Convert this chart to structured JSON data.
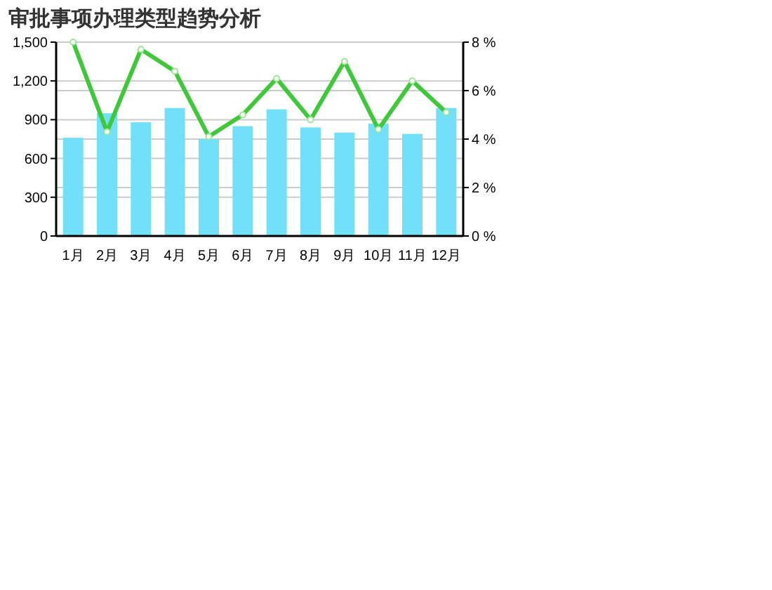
{
  "chart_data": {
    "type": "bar",
    "title": "审批事项办理类型趋势分析",
    "categories": [
      "1月",
      "2月",
      "3月",
      "4月",
      "5月",
      "6月",
      "7月",
      "8月",
      "9月",
      "10月",
      "11月",
      "12月"
    ],
    "series": [
      {
        "color": "#72e0f9",
        "values": [
          760,
          950,
          880,
          990,
          750,
          850,
          980,
          840,
          800,
          870,
          790,
          990
        ]
      },
      {
        "type": "line",
        "axis": "y2",
        "color": "#3ec83a",
        "marker": "circle",
        "line_style": "solid",
        "values": [
          8,
          4.3,
          7.7,
          6.8,
          4.1,
          5.0,
          6.5,
          4.8,
          7.2,
          4.4,
          6.4,
          5.1
        ]
      }
    ],
    "ylim": [
      0,
      1500
    ],
    "yticks": [
      0,
      300,
      600,
      900,
      {
        "value": 1200,
        "label": "1,200"
      },
      {
        "value": 1500,
        "label": "1,500"
      }
    ],
    "y2lim": [
      0,
      8
    ],
    "y2ticks": [
      {
        "value": 0,
        "label": "0 %"
      },
      {
        "value": 2,
        "label": "2 %"
      },
      {
        "value": 4,
        "label": "4 %"
      },
      {
        "value": 6,
        "label": "6 %"
      },
      {
        "value": 8,
        "label": "8 %"
      }
    ],
    "grid": true
  }
}
